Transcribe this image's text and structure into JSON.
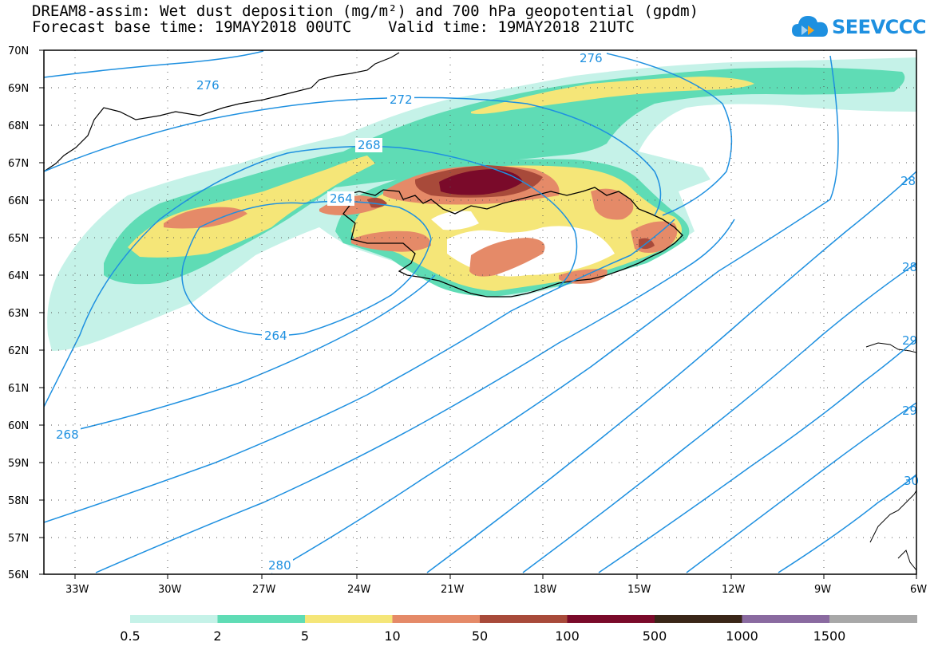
{
  "title": {
    "line1": "DREAM8-assim: Wet dust deposition (mg/m²) and 700 hPa geopotential (gpdm)",
    "line2": "Forecast base time: 19MAY2018 00UTC    Valid time: 19MAY2018 21UTC"
  },
  "logo": {
    "text": "SEEVCCC",
    "icon": "cloud-icon",
    "color": "#1e90e0"
  },
  "axes": {
    "lat_labels": [
      "70N",
      "69N",
      "68N",
      "67N",
      "66N",
      "65N",
      "64N",
      "63N",
      "62N",
      "61N",
      "60N",
      "59N",
      "58N",
      "57N",
      "56N"
    ],
    "lon_labels": [
      "33W",
      "30W",
      "27W",
      "24W",
      "21W",
      "18W",
      "15W",
      "12W",
      "9W",
      "6W"
    ]
  },
  "contour_labels": [
    "276",
    "276",
    "272",
    "268",
    "264",
    "264",
    "268",
    "280",
    "28",
    "28",
    "29",
    "29",
    "30"
  ],
  "legend": {
    "labels": [
      "0.5",
      "2",
      "5",
      "10",
      "50",
      "100",
      "500",
      "1000",
      "1500"
    ],
    "colors": [
      "#c5f2e8",
      "#5fdcb5",
      "#f5e678",
      "#e58a68",
      "#a84a3a",
      "#7a0a2a",
      "#3a2618",
      "#8a6aa0",
      "#a8a8a8"
    ]
  },
  "colors": {
    "contour": "#1e90e0",
    "coast": "#000000"
  }
}
